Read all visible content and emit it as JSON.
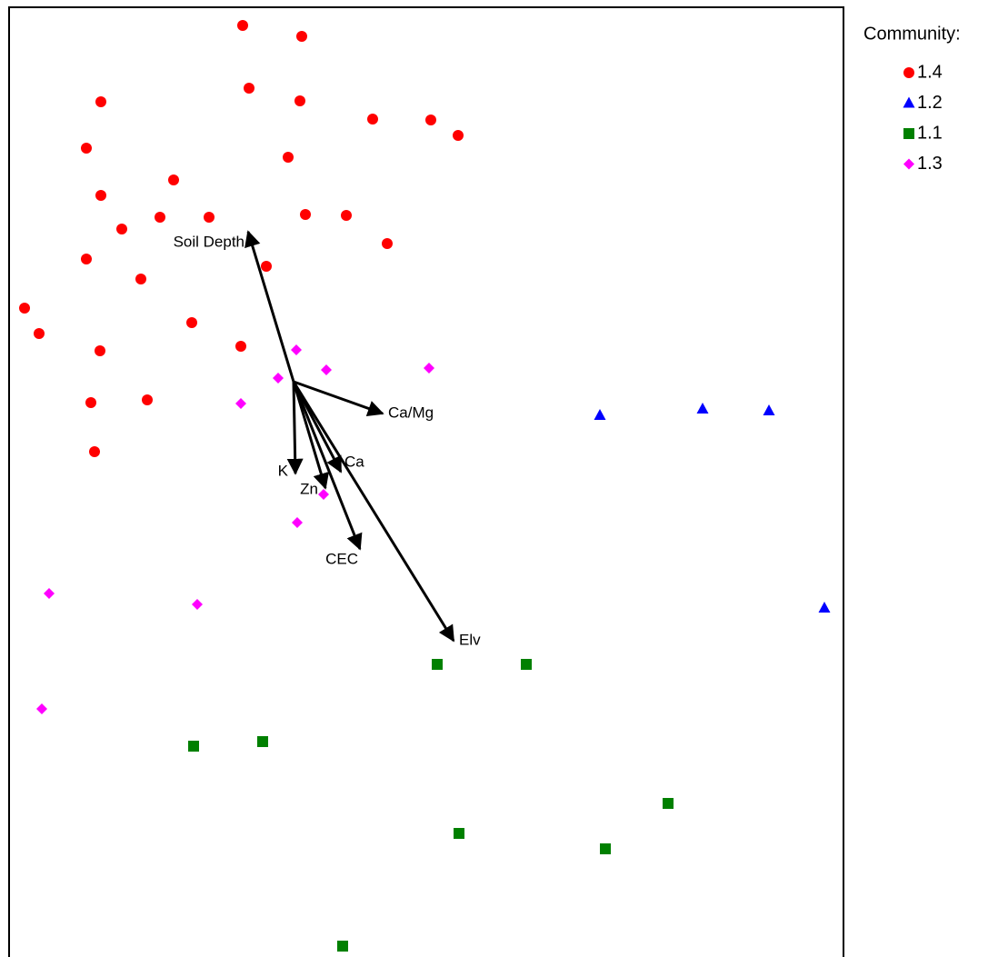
{
  "chart_data": {
    "type": "scatter",
    "legend_title": "Community:",
    "legend": "right",
    "xlim": [
      0,
      918
    ],
    "ylim": [
      0,
      1045
    ],
    "series": [
      {
        "name": "1.4",
        "color": "#ff0000",
        "marker": "circle",
        "x": [
          257,
          322,
          101,
          264,
          320,
          400,
          464,
          494,
          85,
          307,
          181,
          101,
          124,
          166,
          220,
          326,
          371,
          416,
          85,
          283,
          145,
          17,
          33,
          201,
          255,
          100,
          90,
          152,
          94
        ],
        "values": [
          1025,
          1013,
          941,
          956,
          942,
          922,
          921,
          904,
          890,
          880,
          855,
          838,
          801,
          814,
          814,
          817,
          816,
          785,
          768,
          760,
          746,
          714,
          686,
          698,
          672,
          667,
          610,
          613,
          556
        ]
      },
      {
        "name": "1.2",
        "color": "#0000ff",
        "marker": "triangle",
        "x": [
          650,
          763,
          836,
          897
        ],
        "values": [
          596,
          603,
          601,
          384
        ]
      },
      {
        "name": "1.1",
        "color": "#008000",
        "marker": "square",
        "x": [
          471,
          569,
          203,
          279,
          725,
          495,
          656,
          367
        ],
        "values": [
          322,
          322,
          232,
          237,
          169,
          136,
          119,
          12
        ]
      },
      {
        "name": "1.3",
        "color": "#ff00ff",
        "marker": "diamond",
        "x": [
          316,
          349,
          462,
          296,
          255,
          346,
          317,
          44,
          207,
          36
        ],
        "values": [
          668,
          646,
          648,
          637,
          609,
          509,
          478,
          400,
          388,
          273
        ]
      }
    ],
    "vector_origin": {
      "x": 313,
      "y": 633
    },
    "vectors": [
      {
        "label": "Soil Depth",
        "x": 263,
        "y": 798
      },
      {
        "label": "Ca/Mg",
        "x": 411,
        "y": 598
      },
      {
        "label": "K",
        "x": 315,
        "y": 532
      },
      {
        "label": "Zn",
        "x": 348,
        "y": 516
      },
      {
        "label": "Ca",
        "x": 365,
        "y": 534
      },
      {
        "label": "CEC",
        "x": 386,
        "y": 449
      },
      {
        "label": "Elv",
        "x": 489,
        "y": 348
      }
    ]
  }
}
